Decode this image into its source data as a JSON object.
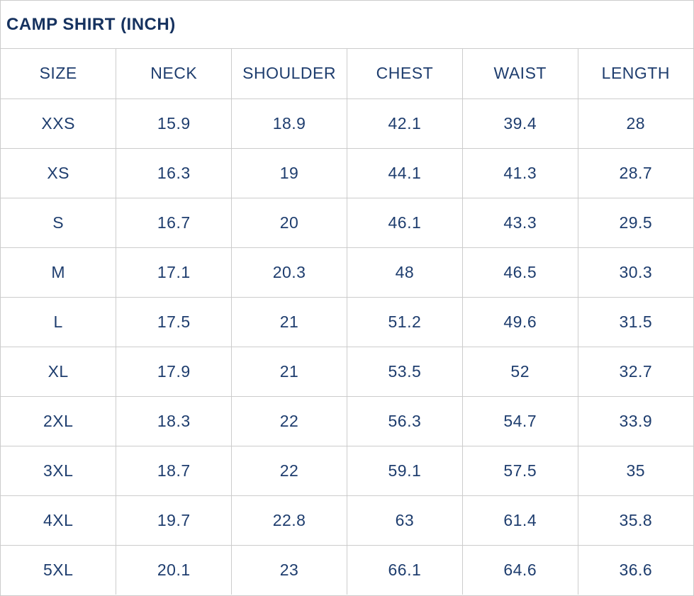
{
  "title": "CAMP SHIRT (INCH)",
  "colors": {
    "title": "#16325f",
    "text": "#1e3d6e",
    "border": "#cccccc",
    "background": "#ffffff"
  },
  "chart_data": {
    "type": "table",
    "title": "CAMP SHIRT (INCH)",
    "columns": [
      "SIZE",
      "NECK",
      "SHOULDER",
      "CHEST",
      "WAIST",
      "LENGTH"
    ],
    "rows": [
      [
        "XXS",
        "15.9",
        "18.9",
        "42.1",
        "39.4",
        "28"
      ],
      [
        "XS",
        "16.3",
        "19",
        "44.1",
        "41.3",
        "28.7"
      ],
      [
        "S",
        "16.7",
        "20",
        "46.1",
        "43.3",
        "29.5"
      ],
      [
        "M",
        "17.1",
        "20.3",
        "48",
        "46.5",
        "30.3"
      ],
      [
        "L",
        "17.5",
        "21",
        "51.2",
        "49.6",
        "31.5"
      ],
      [
        "XL",
        "17.9",
        "21",
        "53.5",
        "52",
        "32.7"
      ],
      [
        "2XL",
        "18.3",
        "22",
        "56.3",
        "54.7",
        "33.9"
      ],
      [
        "3XL",
        "18.7",
        "22",
        "59.1",
        "57.5",
        "35"
      ],
      [
        "4XL",
        "19.7",
        "22.8",
        "63",
        "61.4",
        "35.8"
      ],
      [
        "5XL",
        "20.1",
        "23",
        "66.1",
        "64.6",
        "36.6"
      ]
    ],
    "layout": {
      "grid": true,
      "column_count": 6,
      "row_count": 10,
      "cell_alignment": "center"
    }
  }
}
